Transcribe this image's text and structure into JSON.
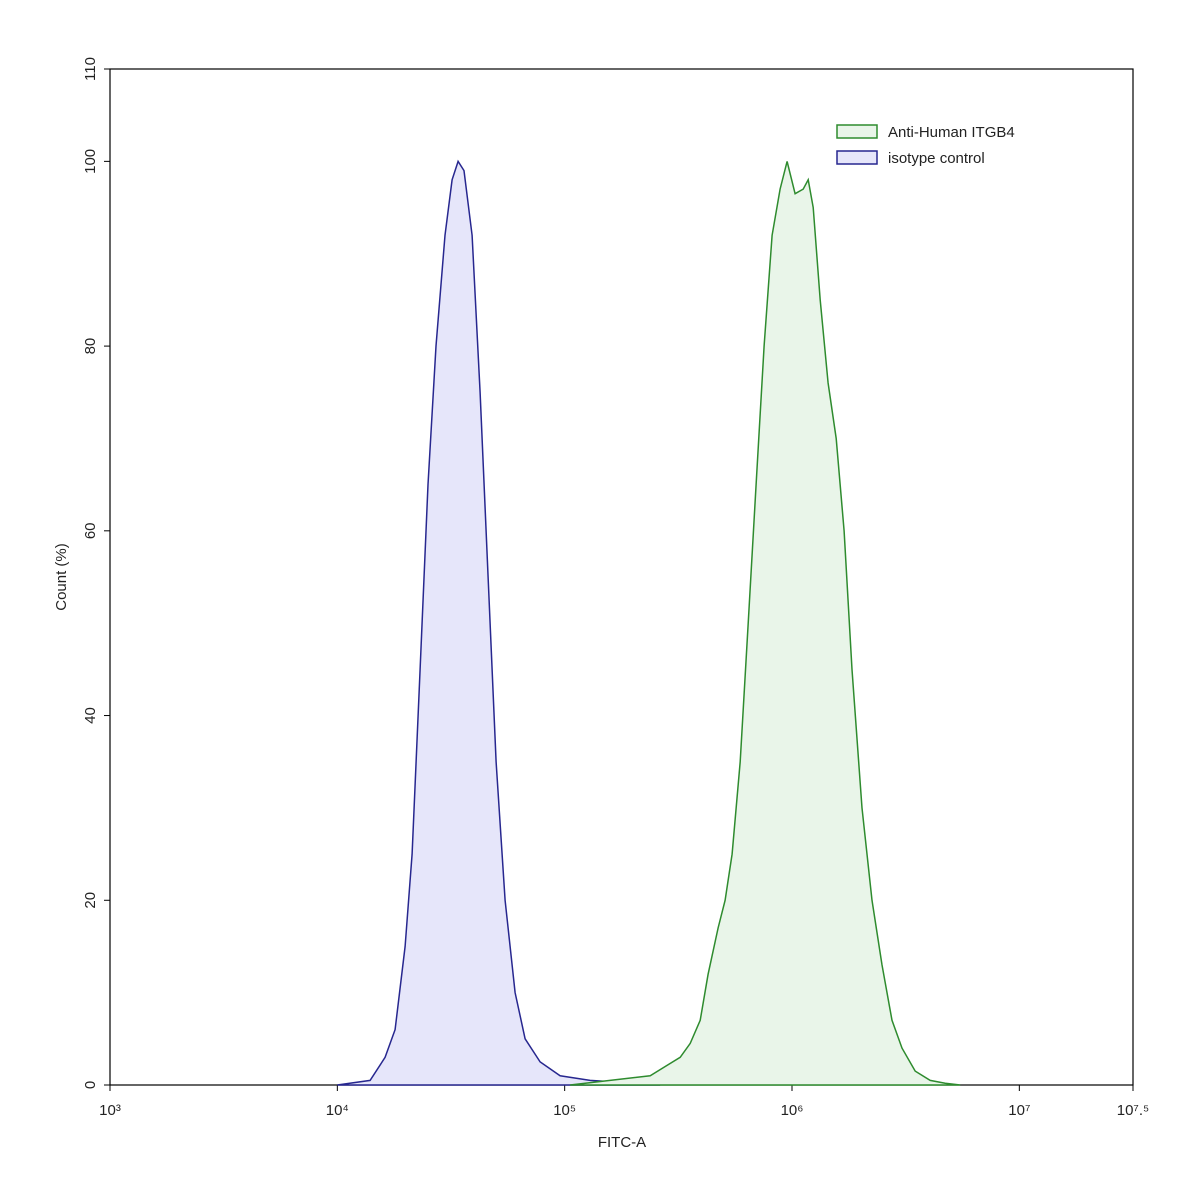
{
  "chart_data": {
    "type": "area",
    "xlabel": "FITC-A",
    "ylabel": "Count  (%)",
    "xscale": "log",
    "xlim": [
      1000,
      31622777
    ],
    "ylim": [
      0,
      110
    ],
    "xticks": [
      {
        "value": 1000,
        "label": "10³"
      },
      {
        "value": 10000,
        "label": "10⁴"
      },
      {
        "value": 100000,
        "label": "10⁵"
      },
      {
        "value": 1000000,
        "label": "10⁶"
      },
      {
        "value": 10000000,
        "label": "10⁷"
      },
      {
        "value": 31622777,
        "label": "10⁷.⁵"
      }
    ],
    "yticks": [
      0,
      20,
      40,
      60,
      80,
      100,
      110
    ],
    "legend": "upper right",
    "series": [
      {
        "name": "Anti-Human ITGB4",
        "color": "#2e8b2e",
        "fill": "#e9f5e9",
        "x": [
          105700,
          158500,
          237700,
          276700,
          322300,
          356500,
          394500,
          427700,
          473200,
          508000,
          545400,
          591500,
          641600,
          695400,
          754100,
          817100,
          886600,
          951600,
          1032000,
          1120000,
          1178000,
          1239000,
          1330000,
          1442000,
          1564000,
          1695000,
          1837000,
          2032000,
          2249000,
          2489000,
          2754000,
          3048000,
          3483000,
          4055000,
          4721000,
          5495000
        ],
        "values": [
          0,
          0.5,
          1,
          2,
          3,
          4.5,
          7,
          12,
          17,
          20,
          25,
          35,
          50,
          65,
          80,
          92,
          97,
          100,
          96.5,
          97,
          98,
          95,
          85,
          76,
          70,
          60,
          45,
          30,
          20,
          13,
          7,
          4,
          1.5,
          0.5,
          0.2,
          0
        ]
      },
      {
        "name": "isotype control",
        "color": "#27278f",
        "fill": "#e6e6fa",
        "x": [
          10000,
          13930,
          16220,
          17950,
          19860,
          21320,
          23120,
          25060,
          27170,
          29770,
          31990,
          33980,
          36080,
          39140,
          42460,
          46040,
          49940,
          54690,
          60540,
          66990,
          78010,
          95500,
          129400,
          175400,
          263000
        ],
        "values": [
          0,
          0.5,
          3,
          6,
          15,
          25,
          45,
          65,
          80,
          92,
          98,
          100,
          99,
          92,
          75,
          55,
          35,
          20,
          10,
          5,
          2.5,
          1,
          0.5,
          0.3,
          0
        ]
      }
    ]
  }
}
